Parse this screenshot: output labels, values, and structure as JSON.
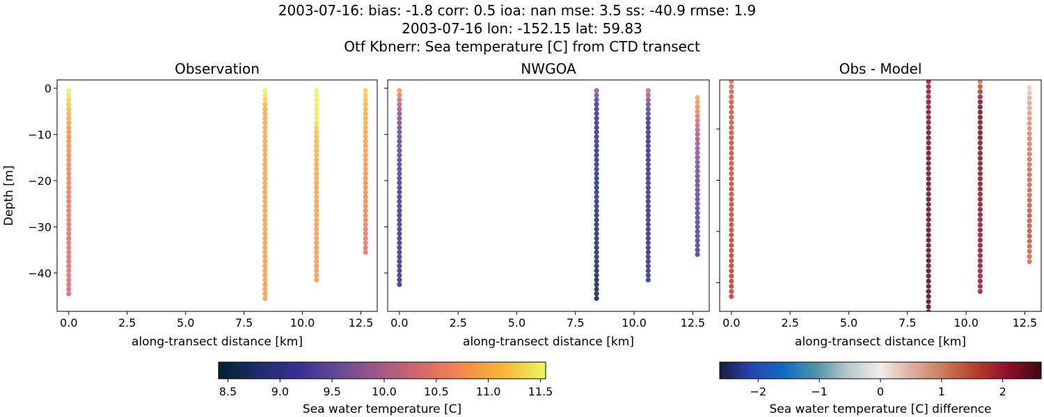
{
  "title_lines": [
    "2003-07-16: bias: -1.8  corr: 0.5  ioa: nan  mse: 3.5  ss: -40.9  rmse: 1.9",
    "2003-07-16 lon: -152.15 lat: 59.83",
    "Otf Kbnerr: Sea temperature [C] from CTD transect"
  ],
  "chart_data": [
    {
      "type": "scatter",
      "title": "Observation",
      "xlabel": "along-transect distance [km]",
      "ylabel": "Depth [m]",
      "xlim": [
        -0.5,
        13.2
      ],
      "ylim": [
        -48.3,
        1.8
      ],
      "xticks": [
        0,
        2.5,
        5,
        7.5,
        10,
        12.5
      ],
      "xtick_labels": [
        "0.0",
        "2.5",
        "5.0",
        "7.5",
        "10.0",
        "12.5"
      ],
      "yticks": [
        0,
        -10,
        -20,
        -30,
        -40
      ],
      "ytick_labels": [
        "0",
        "−10",
        "−20",
        "−30",
        "−40"
      ],
      "colormap": "thermal",
      "color_range": [
        8.41,
        11.55
      ],
      "profiles": [
        {
          "x": 0.0,
          "depth_top": -0.5,
          "depth_bottom": -45,
          "values": [
            [
              -0.5,
              11.5
            ],
            [
              -5,
              11.1
            ],
            [
              -10,
              10.75
            ],
            [
              -30,
              10.45
            ],
            [
              -45,
              10.3
            ]
          ]
        },
        {
          "x": 8.4,
          "depth_top": -0.5,
          "depth_bottom": -46,
          "values": [
            [
              -0.5,
              11.5
            ],
            [
              -3,
              11.3
            ],
            [
              -4,
              11.0
            ],
            [
              -46,
              10.9
            ]
          ]
        },
        {
          "x": 10.6,
          "depth_top": -0.5,
          "depth_bottom": -42,
          "values": [
            [
              -0.5,
              11.5
            ],
            [
              -7,
              11.45
            ],
            [
              -10,
              11.15
            ],
            [
              -20,
              10.95
            ],
            [
              -42,
              10.85
            ]
          ]
        },
        {
          "x": 12.7,
          "depth_top": -0.5,
          "depth_bottom": -36,
          "values": [
            [
              -0.5,
              11.3
            ],
            [
              -5,
              11.05
            ],
            [
              -20,
              10.8
            ],
            [
              -36,
              10.45
            ]
          ]
        }
      ]
    },
    {
      "type": "scatter",
      "title": "NWGOA",
      "xlabel": "along-transect distance [km]",
      "xlim": [
        -0.5,
        13.2
      ],
      "ylim": [
        -48.3,
        1.8
      ],
      "xticks": [
        0,
        2.5,
        5,
        7.5,
        10,
        12.5
      ],
      "xtick_labels": [
        "0.0",
        "2.5",
        "5.0",
        "7.5",
        "10.0",
        "12.5"
      ],
      "yticks": [
        0,
        -10,
        -20,
        -30,
        -40
      ],
      "colormap": "thermal",
      "color_range": [
        8.41,
        11.55
      ],
      "profiles": [
        {
          "x": 0.0,
          "depth_top": -0.5,
          "depth_bottom": -43,
          "values": [
            [
              -0.5,
              10.9
            ],
            [
              -2,
              10.4
            ],
            [
              -5,
              9.8
            ],
            [
              -10,
              9.5
            ],
            [
              -25,
              9.2
            ],
            [
              -43,
              9.0
            ]
          ]
        },
        {
          "x": 8.4,
          "depth_top": -0.5,
          "depth_bottom": -46,
          "values": [
            [
              -0.5,
              9.8
            ],
            [
              -3,
              9.3
            ],
            [
              -6,
              9.0
            ],
            [
              -20,
              8.9
            ],
            [
              -35,
              8.7
            ],
            [
              -46,
              8.5
            ]
          ]
        },
        {
          "x": 10.6,
          "depth_top": -0.5,
          "depth_bottom": -42,
          "values": [
            [
              -0.5,
              10.3
            ],
            [
              -3,
              9.6
            ],
            [
              -8,
              9.1
            ],
            [
              -42,
              9.0
            ]
          ]
        },
        {
          "x": 12.7,
          "depth_top": -2,
          "depth_bottom": -36,
          "values": [
            [
              -2,
              11.0
            ],
            [
              -5,
              10.6
            ],
            [
              -10,
              10.0
            ],
            [
              -20,
              9.5
            ],
            [
              -36,
              9.3
            ]
          ]
        }
      ]
    },
    {
      "type": "scatter",
      "title": "Obs - Model",
      "xlabel": "along-transect distance [km]",
      "xlim": [
        -0.5,
        13.2
      ],
      "ylim": [
        -45.6,
        -0.4
      ],
      "xticks": [
        0,
        2.5,
        5,
        7.5,
        10,
        12.5
      ],
      "xtick_labels": [
        "0.0",
        "2.5",
        "5.0",
        "7.5",
        "10.0",
        "12.5"
      ],
      "yticks": [
        -10,
        -20,
        -30,
        -40
      ],
      "colormap": "balance",
      "color_range": [
        -2.63,
        2.63
      ],
      "profiles": [
        {
          "x": 0.0,
          "depth_top": -0.7,
          "depth_bottom": -43.1,
          "values": [
            [
              -0.7,
              1.1
            ],
            [
              -5,
              1.35
            ],
            [
              -20,
              1.45
            ],
            [
              -43.1,
              1.6
            ]
          ]
        },
        {
          "x": 8.4,
          "depth_top": -0.7,
          "depth_bottom": -46,
          "values": [
            [
              -0.7,
              2.0
            ],
            [
              -10,
              2.3
            ],
            [
              -30,
              2.4
            ],
            [
              -46,
              2.6
            ]
          ]
        },
        {
          "x": 10.6,
          "depth_top": -0.7,
          "depth_bottom": -42.2,
          "values": [
            [
              -0.7,
              1.1
            ],
            [
              -2,
              1.5
            ],
            [
              -5,
              2.3
            ],
            [
              -42.2,
              2.0
            ]
          ]
        },
        {
          "x": 12.7,
          "depth_top": -1.9,
          "depth_bottom": -36,
          "values": [
            [
              -1.9,
              0.3
            ],
            [
              -5,
              0.6
            ],
            [
              -15,
              1.1
            ],
            [
              -30,
              1.4
            ],
            [
              -36,
              1.15
            ]
          ]
        }
      ]
    }
  ],
  "colorbars": [
    {
      "label": "Sea water temperature [C]",
      "colormap": "thermal",
      "range": [
        8.41,
        11.55
      ],
      "ticks": [
        8.5,
        9.0,
        9.5,
        10.0,
        10.5,
        11.0,
        11.5
      ],
      "tick_labels": [
        "8.5",
        "9.0",
        "9.5",
        "10.0",
        "10.5",
        "11.0",
        "11.5"
      ]
    },
    {
      "label": "Sea water temperature [C] difference",
      "colormap": "balance",
      "range": [
        -2.63,
        2.63
      ],
      "ticks": [
        -2,
        -1,
        0,
        1,
        2
      ],
      "tick_labels": [
        "−2",
        "−1",
        "0",
        "1",
        "2"
      ]
    }
  ],
  "colors": {
    "thermal": [
      "#04202f",
      "#1f2d6e",
      "#3a2f97",
      "#6a4b95",
      "#a45a86",
      "#d8686b",
      "#f68a48",
      "#f9b63c",
      "#e8fa5b"
    ],
    "balance": [
      "#181c43",
      "#2546b0",
      "#0f6dc0",
      "#4e93a8",
      "#b8c9ce",
      "#f1ecea",
      "#dcae9c",
      "#c97856",
      "#b63c2c",
      "#8e0f2c",
      "#3c0912"
    ]
  }
}
